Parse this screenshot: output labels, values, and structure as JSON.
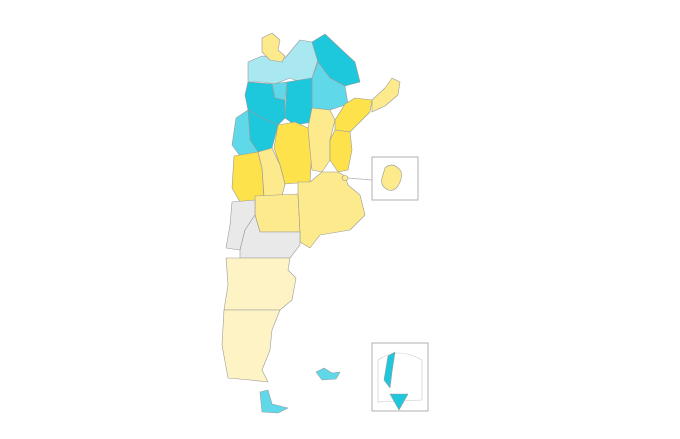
{
  "map": {
    "colors": {
      "light_cyan": "#a9e7f1",
      "mid_cyan": "#5fd9ea",
      "cyan": "#1ec8dc",
      "yellow": "#fde24b",
      "light_yellow": "#fdea8c",
      "pale_yellow": "#fdf3c4",
      "gray": "#e9e9e9"
    },
    "provinces": [
      {
        "id": "jujuy",
        "color": "light_yellow"
      },
      {
        "id": "salta",
        "color": "light_cyan"
      },
      {
        "id": "formosa",
        "color": "cyan"
      },
      {
        "id": "chaco",
        "color": "mid_cyan"
      },
      {
        "id": "santiago-del-estero",
        "color": "cyan"
      },
      {
        "id": "tucuman",
        "color": "mid_cyan"
      },
      {
        "id": "catamarca",
        "color": "cyan"
      },
      {
        "id": "la-rioja",
        "color": "cyan"
      },
      {
        "id": "san-juan",
        "color": "mid_cyan"
      },
      {
        "id": "cordoba",
        "color": "yellow"
      },
      {
        "id": "santa-fe",
        "color": "light_yellow"
      },
      {
        "id": "corrientes",
        "color": "yellow"
      },
      {
        "id": "misiones",
        "color": "light_yellow"
      },
      {
        "id": "entre-rios",
        "color": "yellow"
      },
      {
        "id": "mendoza",
        "color": "yellow"
      },
      {
        "id": "san-luis",
        "color": "light_yellow"
      },
      {
        "id": "la-pampa",
        "color": "light_yellow"
      },
      {
        "id": "buenos-aires",
        "color": "light_yellow"
      },
      {
        "id": "neuquen",
        "color": "gray"
      },
      {
        "id": "rio-negro",
        "color": "gray"
      },
      {
        "id": "chubut",
        "color": "pale_yellow"
      },
      {
        "id": "santa-cruz",
        "color": "pale_yellow"
      },
      {
        "id": "tierra-del-fuego",
        "color": "mid_cyan"
      },
      {
        "id": "malvinas",
        "color": "mid_cyan"
      },
      {
        "id": "caba",
        "color": "light_yellow"
      },
      {
        "id": "antartida",
        "color": "cyan"
      }
    ]
  }
}
